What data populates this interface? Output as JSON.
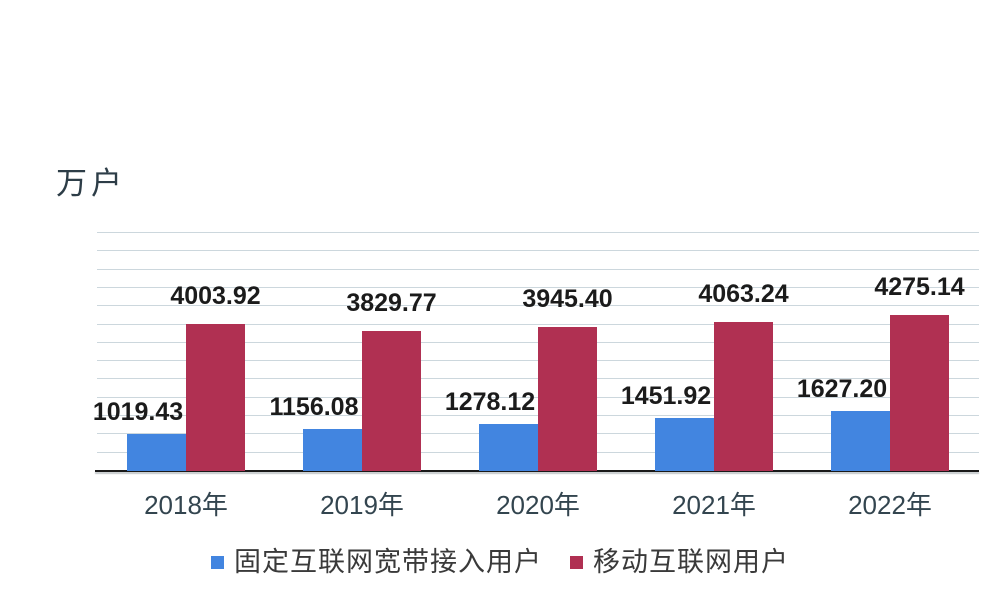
{
  "unit_label": "万户",
  "colors": {
    "fixed_series": "#4285E0",
    "mobile_series": "#B03052",
    "gridline": "#ccd7dd",
    "axis": "#191919",
    "value_label": "#1b1b1b",
    "x_label": "#33454f",
    "legend_text": "#3a3a3a",
    "background": "#ffffff"
  },
  "chart_data": {
    "type": "bar",
    "title": "",
    "ylabel": "万户",
    "xlabel": "",
    "categories": [
      "2018年",
      "2019年",
      "2020年",
      "2021年",
      "2022年"
    ],
    "series": [
      {
        "name": "固定互联网宽带接入用户",
        "color": "#4285E0",
        "values": [
          1019.43,
          1156.08,
          1278.12,
          1451.92,
          1627.2
        ],
        "value_labels": [
          "1019.43",
          "1156.08",
          "1278.12",
          "1451.92",
          "1627.20"
        ]
      },
      {
        "name": "移动互联网用户",
        "color": "#B03052",
        "values": [
          4003.92,
          3829.77,
          3945.4,
          4063.24,
          4275.14
        ],
        "value_labels": [
          "4003.92",
          "3829.77",
          "3945.40",
          "4063.24",
          "4275.14"
        ]
      }
    ],
    "ylim": [
      0,
      6500
    ],
    "gridline_interval": 500,
    "grid": true,
    "y_tick_labels_shown": false,
    "value_labels_shown": true,
    "legend_position": "bottom"
  },
  "legend": {
    "items": [
      {
        "label": "固定互联网宽带接入用户",
        "color": "#4285E0"
      },
      {
        "label": "移动互联网用户",
        "color": "#B03052"
      }
    ]
  }
}
